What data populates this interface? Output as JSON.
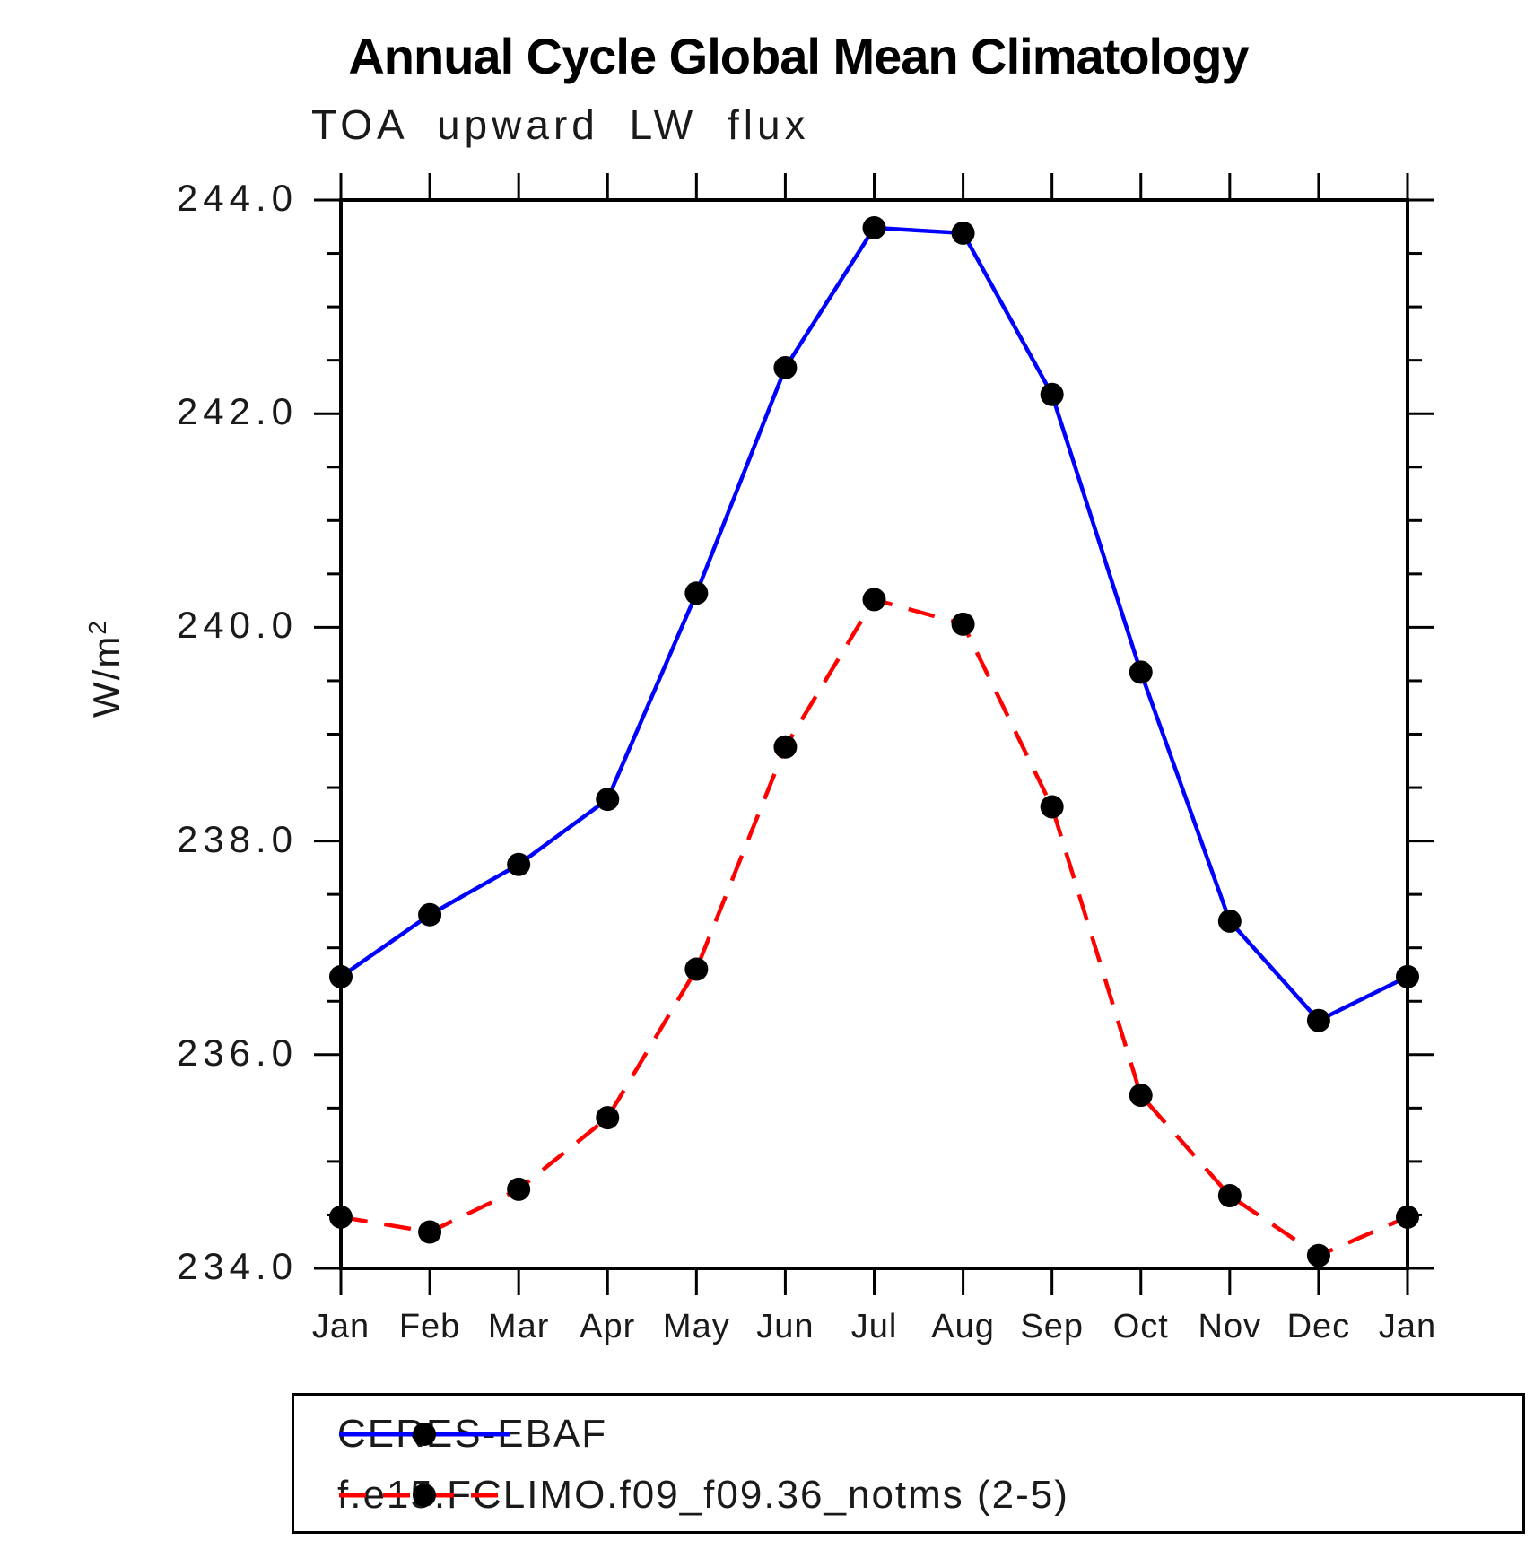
{
  "title": "Annual Cycle Global Mean Climatology",
  "subtitle": "TOA upward LW flux",
  "y_axis": {
    "unit_label": "W/m",
    "unit_exponent": "2",
    "tick_labels": [
      "244.0",
      "242.0",
      "240.0",
      "238.0",
      "236.0",
      "234.0"
    ]
  },
  "x_axis": {
    "tick_labels": [
      "Jan",
      "Feb",
      "Mar",
      "Apr",
      "May",
      "Jun",
      "Jul",
      "Aug",
      "Sep",
      "Oct",
      "Nov",
      "Dec",
      "Jan"
    ]
  },
  "legend": {
    "position": "bottom",
    "items": [
      {
        "label": "CERES-EBAF",
        "line_color": "#0000ff",
        "line_style": "solid",
        "marker": "filled-circle",
        "marker_color": "#000000"
      },
      {
        "label": "f.e15.FCLIMO.f09_f09.36_notms (2-5)",
        "line_color": "#ff0000",
        "line_style": "dashed",
        "marker": "filled-circle",
        "marker_color": "#000000"
      }
    ]
  },
  "chart_data": {
    "type": "line",
    "title": "Annual Cycle Global Mean Climatology",
    "subtitle": "TOA upward LW flux",
    "ylabel": "W/m²",
    "xlabel": "",
    "categories": [
      "Jan",
      "Feb",
      "Mar",
      "Apr",
      "May",
      "Jun",
      "Jul",
      "Aug",
      "Sep",
      "Oct",
      "Nov",
      "Dec",
      "Jan"
    ],
    "series": [
      {
        "name": "CERES-EBAF",
        "color": "#0000ff",
        "line_style": "solid",
        "marker": "filled-circle",
        "marker_color": "#000000",
        "values": [
          236.73,
          237.31,
          237.78,
          238.39,
          240.32,
          242.43,
          243.74,
          243.69,
          242.18,
          239.58,
          237.25,
          236.32,
          236.73
        ]
      },
      {
        "name": "f.e15.FCLIMO.f09_f09.36_notms (2-5)",
        "color": "#ff0000",
        "line_style": "dashed",
        "marker": "filled-circle",
        "marker_color": "#000000",
        "values": [
          234.48,
          234.34,
          234.74,
          235.41,
          236.8,
          238.88,
          240.26,
          240.03,
          238.32,
          235.62,
          234.68,
          234.12,
          234.48
        ]
      }
    ],
    "ylim": [
      234.0,
      244.0
    ],
    "y_major_step": 2.0,
    "y_minor_step": 0.5,
    "grid": false,
    "legend_position": "bottom"
  }
}
